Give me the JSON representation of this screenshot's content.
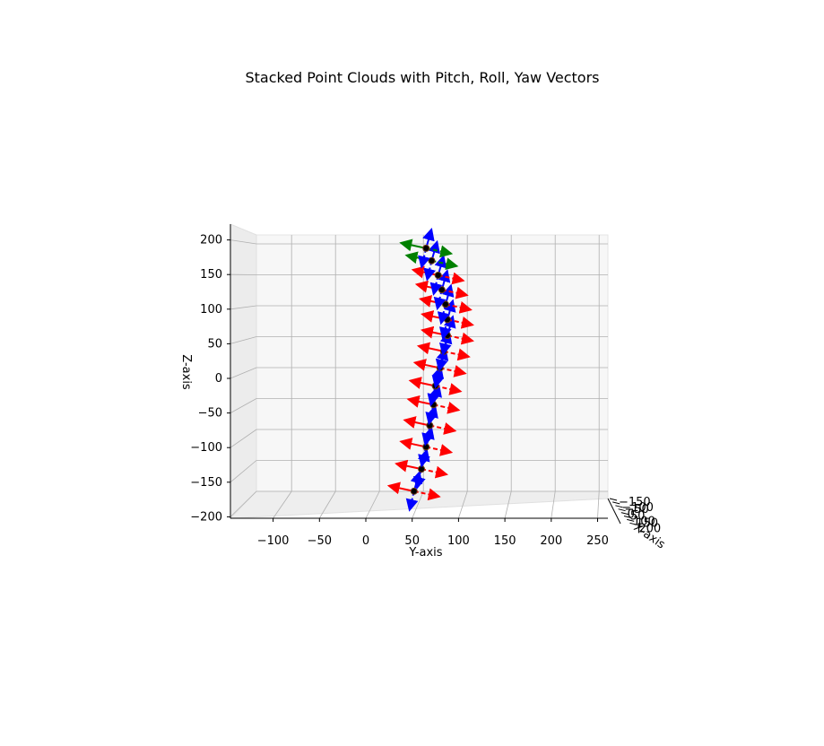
{
  "chart_data": {
    "type": "scatter",
    "projection": "3d",
    "title": "Stacked Point Clouds with Pitch, Roll, Yaw Vectors",
    "xlabel": "X-axis",
    "ylabel": "Y-axis",
    "zlabel": "Z-axis",
    "ylim": [
      -140,
      260
    ],
    "zlim": [
      -200,
      210
    ],
    "y_ticks": [
      "−100",
      "−50",
      "0",
      "50",
      "100",
      "150",
      "200",
      "250"
    ],
    "y_tick_values": [
      -100,
      -50,
      0,
      50,
      100,
      150,
      200,
      250
    ],
    "z_ticks": [
      "−200",
      "−150",
      "−100",
      "−50",
      "0",
      "50",
      "100",
      "150",
      "200"
    ],
    "z_tick_values": [
      -200,
      -150,
      -100,
      -50,
      0,
      50,
      100,
      150,
      200
    ],
    "x_ticks": [
      "−150",
      "−100",
      "−50",
      "0",
      "50",
      "100",
      "150",
      "200"
    ],
    "grid": true,
    "colors": {
      "points": "#000000",
      "pitch": "#ff0000",
      "roll": "#0000ff",
      "yaw": "#008000",
      "pane": "#f2f2f2",
      "grid": "#b0b0b0"
    },
    "points": [
      {
        "y": 52,
        "z": -163,
        "vec": "pitch"
      },
      {
        "y": 60,
        "z": -131,
        "vec": "pitch"
      },
      {
        "y": 65,
        "z": -99,
        "vec": "pitch"
      },
      {
        "y": 69,
        "z": -68,
        "vec": "pitch"
      },
      {
        "y": 73,
        "z": -38,
        "vec": "pitch"
      },
      {
        "y": 75,
        "z": -11,
        "vec": "pitch"
      },
      {
        "y": 80,
        "z": 15,
        "vec": "pitch"
      },
      {
        "y": 84,
        "z": 39,
        "vec": "pitch"
      },
      {
        "y": 88,
        "z": 62,
        "vec": "pitch"
      },
      {
        "y": 88,
        "z": 85,
        "vec": "pitch"
      },
      {
        "y": 86,
        "z": 107,
        "vec": "pitch"
      },
      {
        "y": 82,
        "z": 128,
        "vec": "pitch"
      },
      {
        "y": 78,
        "z": 149,
        "vec": "pitch"
      },
      {
        "y": 71,
        "z": 170,
        "vec": "yaw"
      },
      {
        "y": 65,
        "z": 188,
        "vec": "yaw"
      }
    ]
  }
}
